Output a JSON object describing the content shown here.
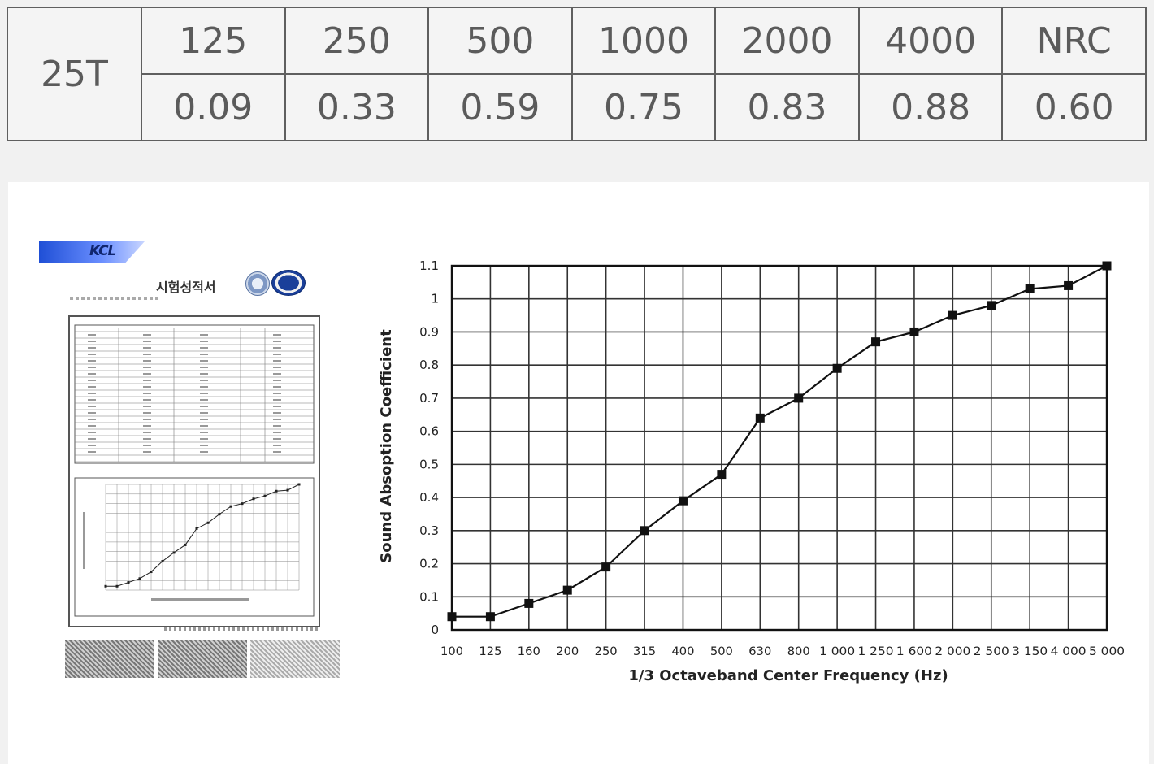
{
  "table": {
    "row_label": "25T",
    "headers": [
      "125",
      "250",
      "500",
      "1000",
      "2000",
      "4000",
      "NRC"
    ],
    "values": [
      "0.09",
      "0.33",
      "0.59",
      "0.75",
      "0.83",
      "0.88",
      "0.60"
    ]
  },
  "document": {
    "logo_text": "KCL",
    "title": "시험성적서"
  },
  "chart_data": {
    "type": "line",
    "xlabel": "1/3 Octaveband Center Frequency (Hz)",
    "ylabel": "Sound Absoption Coefficient",
    "categories": [
      "100",
      "125",
      "160",
      "200",
      "250",
      "315",
      "400",
      "500",
      "630",
      "800",
      "1 000",
      "1 250",
      "1 600",
      "2 000",
      "2 500",
      "3 150",
      "4 000",
      "5 000"
    ],
    "series": [
      {
        "values": [
          0.04,
          0.04,
          0.08,
          0.12,
          0.19,
          0.3,
          0.39,
          0.47,
          0.64,
          0.7,
          0.79,
          0.87,
          0.9,
          0.95,
          0.98,
          1.03,
          1.04,
          1.1
        ]
      }
    ],
    "ylim": [
      0,
      1.1
    ],
    "yticks": [
      0,
      0.1,
      0.2,
      0.3,
      0.4,
      0.5,
      0.6,
      0.7,
      0.8,
      0.9,
      1,
      1.1
    ],
    "ytick_labels": [
      "0",
      "0.1",
      "0.2",
      "0.3",
      "0.4",
      "0.5",
      "0.6",
      "0.7",
      "0.8",
      "0.9",
      "1",
      "1.1"
    ],
    "grid": true,
    "marker": "square",
    "colors": {
      "line": "#111111",
      "grid": "#333333"
    }
  }
}
